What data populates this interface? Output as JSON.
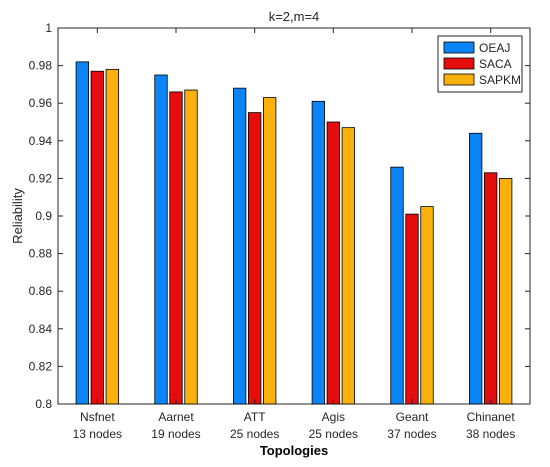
{
  "chart_data": {
    "type": "bar",
    "title": "k=2,m=4",
    "xlabel": "Topologies",
    "ylabel": "Reliability",
    "ylim": [
      0.8,
      1.0
    ],
    "yticks": [
      0.8,
      0.82,
      0.84,
      0.86,
      0.88,
      0.9,
      0.92,
      0.94,
      0.96,
      0.98,
      1
    ],
    "ytick_labels": [
      "0.8",
      "0.82",
      "0.84",
      "0.86",
      "0.88",
      "0.9",
      "0.92",
      "0.94",
      "0.96",
      "0.98",
      "1"
    ],
    "categories": [
      {
        "name": "Nsfnet",
        "nodes": "13 nodes"
      },
      {
        "name": "Aarnet",
        "nodes": "19 nodes"
      },
      {
        "name": "ATT",
        "nodes": "25 nodes"
      },
      {
        "name": "Agis",
        "nodes": "25 nodes"
      },
      {
        "name": "Geant",
        "nodes": "37 nodes"
      },
      {
        "name": "Chinanet",
        "nodes": "38 nodes"
      }
    ],
    "series": [
      {
        "name": "OEAJ",
        "color": "#0b84f5",
        "values": [
          0.982,
          0.975,
          0.968,
          0.961,
          0.926,
          0.944
        ]
      },
      {
        "name": "SACA",
        "color": "#e50d0d",
        "values": [
          0.977,
          0.966,
          0.955,
          0.95,
          0.901,
          0.923
        ]
      },
      {
        "name": "SAPKM",
        "color": "#fbb10d",
        "values": [
          0.978,
          0.967,
          0.963,
          0.947,
          0.905,
          0.92
        ]
      }
    ],
    "grid": false,
    "legend_position": "top-right"
  }
}
